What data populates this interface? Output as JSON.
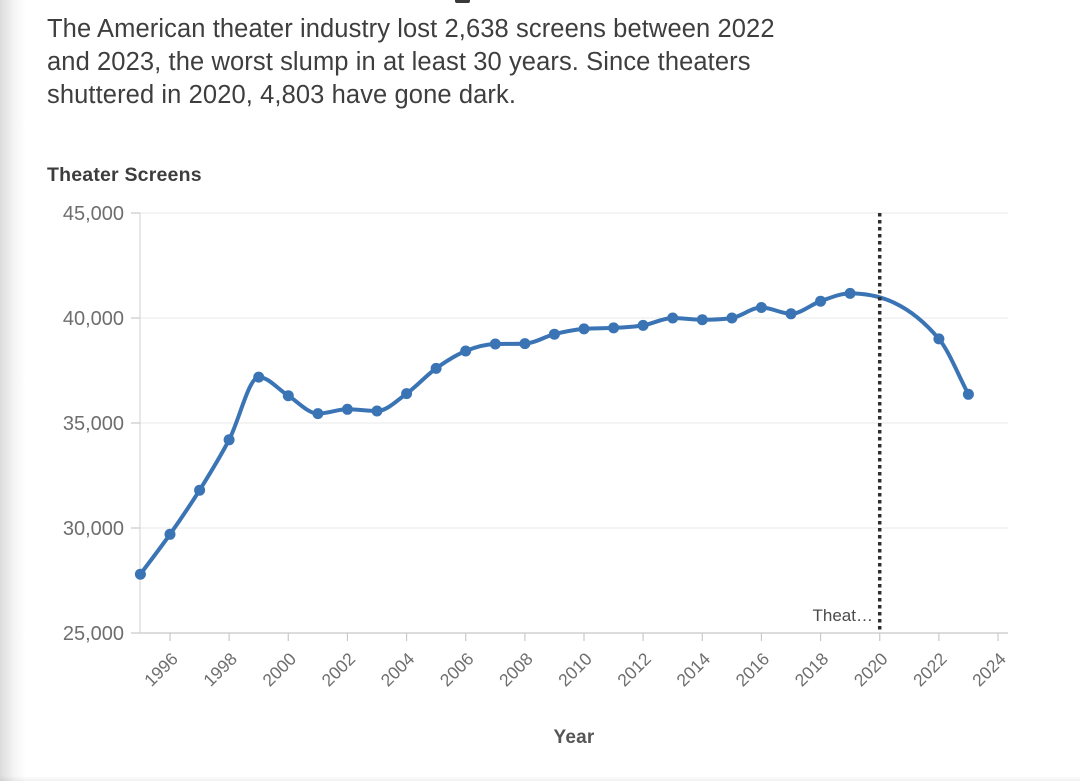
{
  "header": {
    "intro_lines": [
      "The American theater industry lost 2,638 screens between 2022",
      "and 2023, the worst slump in at least 30 years. Since theaters",
      "shuttered in 2020, 4,803 have gone dark."
    ]
  },
  "chart_data": {
    "type": "line",
    "title": "Theater Screens",
    "xlabel": "Year",
    "ylabel": "",
    "xlim": [
      1994.5,
      2024.4
    ],
    "ylim": [
      25000,
      45000
    ],
    "x_ticks": [
      1996,
      1998,
      2000,
      2002,
      2004,
      2006,
      2008,
      2010,
      2012,
      2014,
      2016,
      2018,
      2020,
      2022,
      2024
    ],
    "y_ticks": [
      25000,
      30000,
      35000,
      40000,
      45000
    ],
    "grid": true,
    "legend": false,
    "reference_line": {
      "x": 2020,
      "style": "dotted",
      "color": "#2E2E2E",
      "label": "Theat…"
    },
    "series": [
      {
        "name": "Theater Screens",
        "color": "#3A74B4",
        "x": [
          1995,
          1996,
          1997,
          1998,
          1999,
          2000,
          2001,
          2002,
          2003,
          2004,
          2005,
          2006,
          2007,
          2008,
          2009,
          2010,
          2011,
          2012,
          2013,
          2014,
          2015,
          2016,
          2017,
          2018,
          2019,
          2022,
          2023
        ],
        "y": [
          27800,
          29700,
          31800,
          34200,
          37185,
          36300,
          35450,
          35650,
          35570,
          36400,
          37600,
          38430,
          38760,
          38780,
          39230,
          39480,
          39530,
          39650,
          40000,
          39920,
          40000,
          40500,
          40200,
          40800,
          41172,
          39007,
          36369
        ]
      }
    ]
  },
  "colors": {
    "line": "#3A74B4",
    "grid": "#EDEDED",
    "axis": "#C9C9C9",
    "y_axis_line": "#D8D8D8",
    "tick_label": "#6E6E6E",
    "title_text": "#3D3D3D",
    "annotation_text": "#4A4A4A",
    "reference_line": "#2E2E2E"
  }
}
